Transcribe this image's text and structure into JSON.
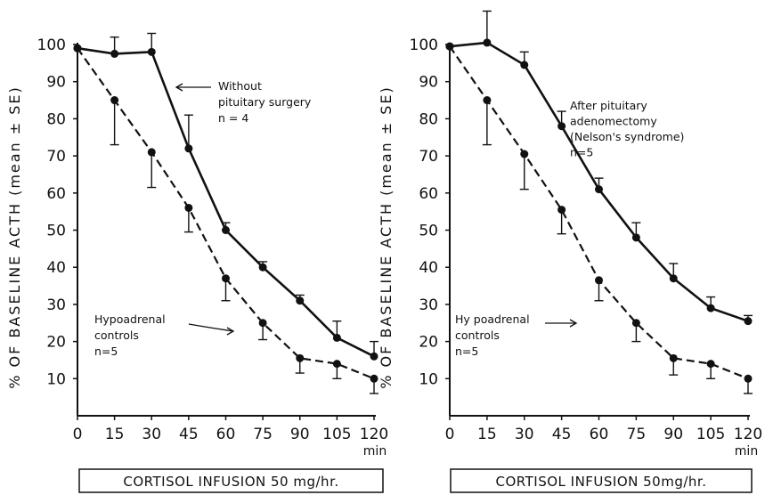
{
  "chart_data": [
    {
      "type": "line",
      "x": [
        0,
        15,
        30,
        45,
        60,
        75,
        90,
        105,
        120
      ],
      "xlabel": "CORTISOL INFUSION 50 mg/hr.",
      "x_unit": "min",
      "ylabel": "% OF BASELINE ACTH (mean ± SE)",
      "ylim": [
        0,
        100
      ],
      "yticks": [
        10,
        20,
        30,
        40,
        50,
        60,
        70,
        80,
        90,
        100
      ],
      "xticks": [
        0,
        15,
        30,
        45,
        60,
        75,
        90,
        105,
        120
      ],
      "series": [
        {
          "name": "Without pituitary surgery",
          "style": "solid",
          "values": [
            99,
            97.5,
            98,
            72,
            50,
            40,
            31,
            21,
            16
          ],
          "se_upper": [
            0,
            4.5,
            5,
            9,
            2,
            1.5,
            1.5,
            4.5,
            4
          ]
        },
        {
          "name": "Hypoadrenal controls",
          "style": "dashed",
          "values": [
            99,
            85,
            71,
            56,
            37,
            25,
            15.5,
            14,
            10
          ],
          "se_lower": [
            0,
            12,
            9.5,
            6.5,
            6,
            4.5,
            4,
            4,
            4
          ]
        }
      ],
      "annotations": [
        {
          "lines": [
            "Without",
            "pituitary surgery",
            "n = 4"
          ]
        },
        {
          "lines": [
            "Hypoadrenal",
            "controls",
            "n=5"
          ]
        }
      ]
    },
    {
      "type": "line",
      "x": [
        0,
        15,
        30,
        45,
        60,
        75,
        90,
        105,
        120
      ],
      "xlabel": "CORTISOL INFUSION 50mg/hr.",
      "x_unit": "min",
      "ylabel": "% OF BASELINE ACTH (mean ± SE)",
      "ylim": [
        0,
        100
      ],
      "yticks": [
        10,
        20,
        30,
        40,
        50,
        60,
        70,
        80,
        90,
        100
      ],
      "xticks": [
        0,
        15,
        30,
        45,
        60,
        75,
        90,
        105,
        120
      ],
      "series": [
        {
          "name": "After pituitary adenomectomy (Nelson's syndrome)",
          "style": "solid",
          "values": [
            99.5,
            100.5,
            94.5,
            78,
            61,
            48,
            37,
            29,
            25.5
          ],
          "se_upper": [
            0,
            8.5,
            3.5,
            4,
            3,
            4,
            4,
            3,
            1.5
          ]
        },
        {
          "name": "Hypoadrenal controls",
          "style": "dashed",
          "values": [
            99.5,
            85,
            70.5,
            55.5,
            36.5,
            25,
            15.5,
            14,
            10
          ],
          "se_lower": [
            0,
            12,
            9.5,
            6.5,
            5.5,
            5,
            4.5,
            4,
            4
          ]
        }
      ],
      "annotations": [
        {
          "lines": [
            "After pituitary",
            "adenomectomy",
            "(Nelson's syndrome)",
            "n=5"
          ]
        },
        {
          "lines": [
            "Hy poadrenal",
            "controls",
            "n=5"
          ]
        }
      ]
    }
  ]
}
